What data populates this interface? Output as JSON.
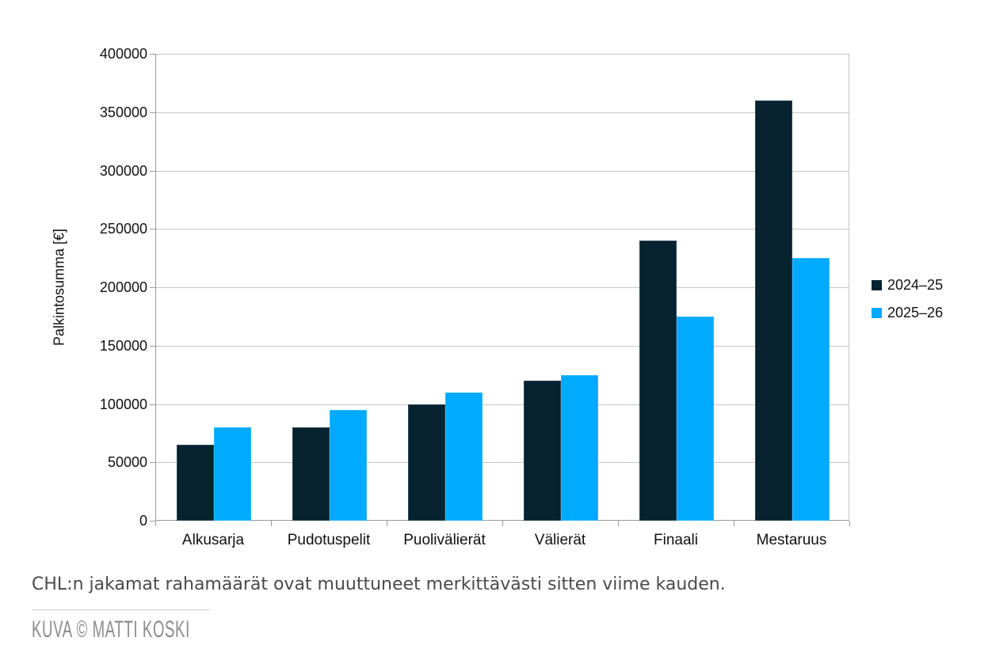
{
  "chart_data": {
    "type": "bar",
    "title": "",
    "categories": [
      "Alkusarja",
      "Pudotuspelit",
      "Puolivälierät",
      "Välierät",
      "Finaali",
      "Mestaruus"
    ],
    "series": [
      {
        "name": "2024–25",
        "color": "#072330",
        "values": [
          65000,
          80000,
          100000,
          120000,
          240000,
          360000
        ]
      },
      {
        "name": "2025–26",
        "color": "#00aaff",
        "values": [
          80000,
          95000,
          110000,
          125000,
          175000,
          225000
        ]
      }
    ],
    "xlabel": "",
    "ylabel": "Palkintosumma [€]",
    "ylim": [
      0,
      400000
    ],
    "ytick_step": 50000,
    "grid": true,
    "legend_position": "right"
  },
  "caption": "CHL:n jakamat rahamäärät ovat muuttuneet merkittävästi sitten viime kauden.",
  "credit": "KUVA © MATTI KOSKI",
  "colors": {
    "background": "#ffffff",
    "gridline": "#c6c6c6",
    "axis": "#9a9a9a",
    "tick_text": "#111111",
    "caption_text": "#4a4a4a",
    "credit_text": "#8b8b8b",
    "series_dark": "#072330",
    "series_light": "#00aaff"
  }
}
